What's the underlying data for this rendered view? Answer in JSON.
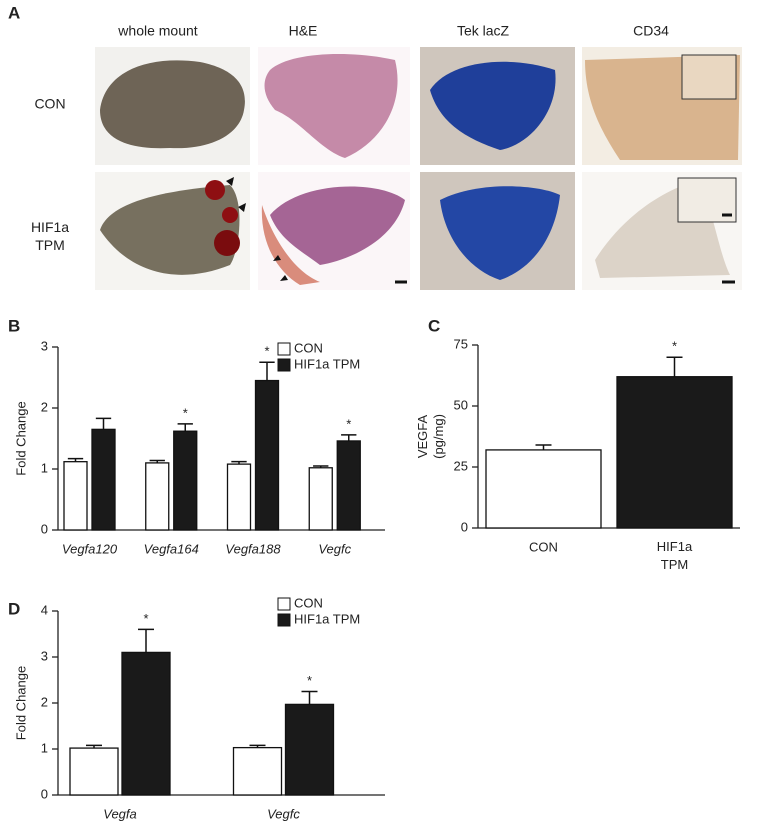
{
  "panel_a": {
    "label": "A",
    "columns": [
      "whole mount",
      "H&E",
      "Tek lacZ",
      "CD34"
    ],
    "rows": [
      "CON",
      "HIF1a TPM"
    ]
  },
  "chart_data": [
    {
      "type": "bar",
      "label": "B",
      "ylabel": "Fold Change",
      "categories": [
        "Vegfa120",
        "Vegfa164",
        "Vegfa188",
        "Vegfc"
      ],
      "series": [
        {
          "name": "CON",
          "color": "#ffffff",
          "values": [
            1.12,
            1.1,
            1.08,
            1.02
          ],
          "errors": [
            0.05,
            0.04,
            0.04,
            0.03
          ],
          "significance": [
            null,
            null,
            null,
            null
          ]
        },
        {
          "name": "HIF1a TPM",
          "color": "#1a1a1a",
          "values": [
            1.65,
            1.62,
            2.45,
            1.46
          ],
          "errors": [
            0.18,
            0.12,
            0.3,
            0.1
          ],
          "significance": [
            null,
            "*",
            "*",
            "*"
          ]
        }
      ],
      "ylim": [
        0,
        3
      ],
      "yticks": [
        0,
        1,
        2,
        3
      ],
      "legend": "top-right"
    },
    {
      "type": "bar",
      "label": "C",
      "ylabel": "VEGFA (pg/mg)",
      "categories": [
        "CON",
        "HIF1a TPM"
      ],
      "series": [
        {
          "colors": [
            "#ffffff",
            "#1a1a1a"
          ],
          "values": [
            32,
            62
          ],
          "errors": [
            2,
            8
          ],
          "significance": [
            null,
            "*"
          ]
        }
      ],
      "ylim": [
        0,
        75
      ],
      "yticks": [
        0,
        25,
        50,
        75
      ]
    },
    {
      "type": "bar",
      "label": "D",
      "ylabel": "Fold Change",
      "categories": [
        "Vegfa",
        "Vegfc"
      ],
      "series": [
        {
          "name": "CON",
          "color": "#ffffff",
          "values": [
            1.02,
            1.03
          ],
          "errors": [
            0.06,
            0.05
          ],
          "significance": [
            null,
            null
          ]
        },
        {
          "name": "HIF1a TPM",
          "color": "#1a1a1a",
          "values": [
            3.1,
            1.97
          ],
          "errors": [
            0.5,
            0.28
          ],
          "significance": [
            "*",
            "*"
          ]
        }
      ],
      "ylim": [
        0,
        4
      ],
      "yticks": [
        0,
        1,
        2,
        3,
        4
      ],
      "legend": "top-right"
    }
  ]
}
